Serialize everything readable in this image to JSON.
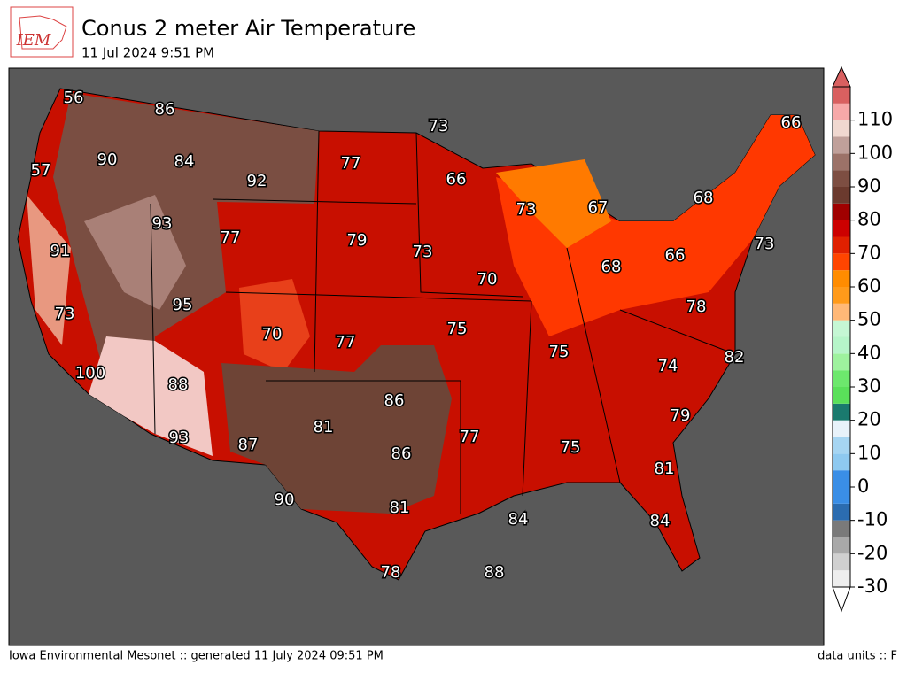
{
  "header": {
    "logo": "IEM",
    "title": "Conus 2 meter Air Temperature",
    "subtitle": "11 Jul 2024 9:51 PM"
  },
  "colorbar": {
    "range": [
      -30,
      120
    ],
    "ticks": [
      -30,
      -20,
      -10,
      0,
      10,
      20,
      30,
      40,
      50,
      60,
      70,
      80,
      90,
      100,
      110
    ],
    "colors": [
      "#eeeeee",
      "#d0d0d0",
      "#a9a9a9",
      "#7a7a7a",
      "#2b6cb0",
      "#3a8ee6",
      "#3a8ee6",
      "#8ec9f0",
      "#a6d5f2",
      "#e8f2fa",
      "#1a7a6e",
      "#5ae05a",
      "#6de86d",
      "#9ef29e",
      "#b6f5c9",
      "#c5f7d4",
      "#ffb877",
      "#ff9a1a",
      "#ff8c00",
      "#ff4500",
      "#e02000",
      "#cc0000",
      "#a00000",
      "#6b3a2e",
      "#7d4e42",
      "#9c7268",
      "#c0a09a",
      "#f0d8d0",
      "#f7a8a8",
      "#d96060"
    ]
  },
  "map_labels": [
    56,
    86,
    90,
    84,
    92,
    57,
    93,
    91,
    77,
    79,
    73,
    95,
    70,
    77,
    100,
    88,
    93,
    87,
    81,
    86,
    86,
    90,
    81,
    78,
    88,
    77,
    75,
    84,
    84,
    81,
    79,
    82,
    74,
    78,
    75,
    75,
    73,
    70,
    66,
    73,
    67,
    68,
    66,
    73,
    68,
    66,
    77,
    73
  ],
  "footer": {
    "source": "Iowa Environmental Mesonet :: generated 11 July 2024 09:51 PM",
    "units": "data units :: F"
  }
}
